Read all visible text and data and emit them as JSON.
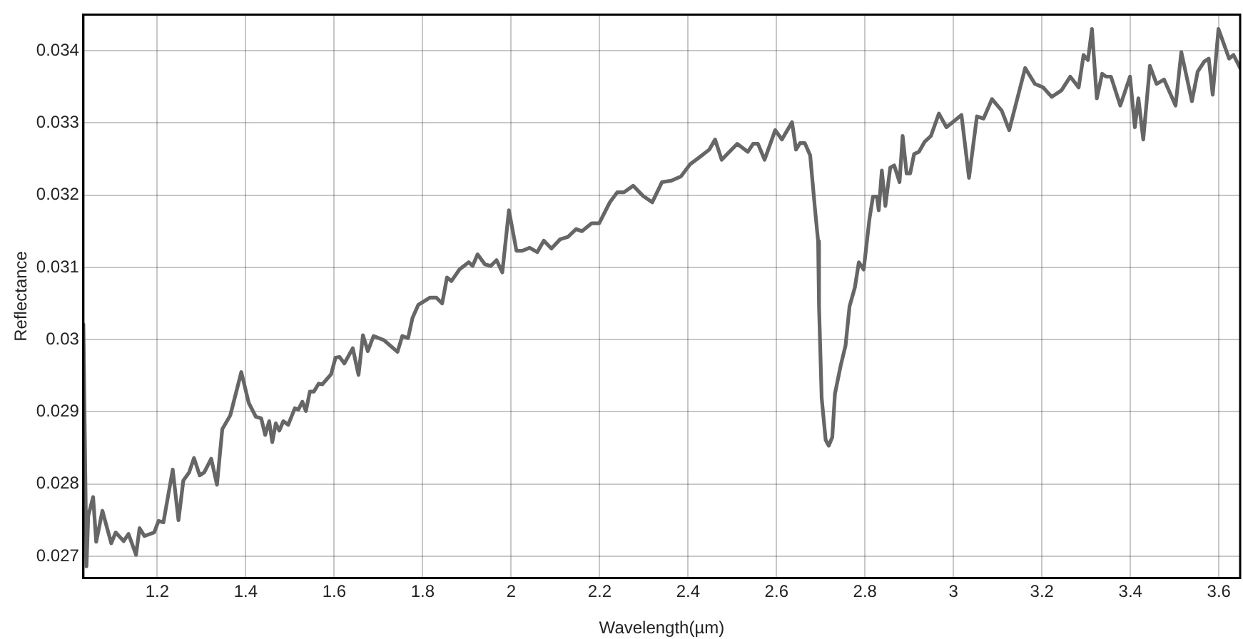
{
  "chart_data": {
    "type": "line",
    "xlabel": "Wavelength(µm)",
    "ylabel": "Reflectance",
    "xlim": [
      1.033,
      3.648
    ],
    "xticks": [
      1.2,
      1.4,
      1.6,
      1.8,
      2,
      2.2,
      2.4,
      2.6,
      2.8,
      3,
      3.2,
      3.4,
      3.6
    ],
    "ylim": [
      0.0267,
      0.0345
    ],
    "yticks": [
      0.027,
      0.028,
      0.029,
      0.03,
      0.031,
      0.032,
      0.033,
      0.034
    ],
    "grid": true,
    "legend": false,
    "marker": "none",
    "line_style": "solid",
    "series": [
      {
        "color": "#666666",
        "x": [
          1.033,
          1.04,
          1.044,
          1.055,
          1.062,
          1.076,
          1.096,
          1.106,
          1.124,
          1.135,
          1.152,
          1.16,
          1.171,
          1.193,
          1.203,
          1.214,
          1.235,
          1.248,
          1.259,
          1.272,
          1.283,
          1.296,
          1.306,
          1.322,
          1.335,
          1.347,
          1.365,
          1.39,
          1.407,
          1.423,
          1.435,
          1.444,
          1.453,
          1.46,
          1.468,
          1.476,
          1.485,
          1.496,
          1.511,
          1.519,
          1.528,
          1.536,
          1.545,
          1.554,
          1.565,
          1.573,
          1.593,
          1.603,
          1.612,
          1.623,
          1.642,
          1.655,
          1.665,
          1.676,
          1.689,
          1.713,
          1.726,
          1.743,
          1.754,
          1.767,
          1.777,
          1.79,
          1.816,
          1.831,
          1.844,
          1.855,
          1.865,
          1.883,
          1.904,
          1.913,
          1.924,
          1.941,
          1.954,
          1.967,
          1.98,
          1.995,
          2.012,
          2.025,
          2.042,
          2.059,
          2.074,
          2.091,
          2.111,
          2.128,
          2.147,
          2.16,
          2.182,
          2.199,
          2.223,
          2.24,
          2.255,
          2.276,
          2.298,
          2.319,
          2.341,
          2.362,
          2.384,
          2.405,
          2.427,
          2.448,
          2.461,
          2.476,
          2.511,
          2.535,
          2.547,
          2.558,
          2.573,
          2.597,
          2.612,
          2.635,
          2.644,
          2.653,
          2.664,
          2.676,
          2.687,
          2.694,
          2.696,
          2.702,
          2.711,
          2.718,
          2.726,
          2.732,
          2.745,
          2.756,
          2.765,
          2.777,
          2.786,
          2.797,
          2.81,
          2.818,
          2.827,
          2.831,
          2.838,
          2.846,
          2.857,
          2.866,
          2.878,
          2.885,
          2.894,
          2.902,
          2.911,
          2.922,
          2.935,
          2.949,
          2.967,
          2.984,
          3.018,
          3.035,
          3.053,
          3.068,
          3.087,
          3.109,
          3.126,
          3.162,
          3.184,
          3.203,
          3.222,
          3.244,
          3.264,
          3.283,
          3.294,
          3.304,
          3.313,
          3.324,
          3.336,
          3.345,
          3.356,
          3.377,
          3.399,
          3.41,
          3.418,
          3.429,
          3.444,
          3.459,
          3.476,
          3.502,
          3.515,
          3.539,
          3.552,
          3.567,
          3.577,
          3.586,
          3.599,
          3.623,
          3.633,
          3.648
        ],
        "values": [
          0.03021,
          0.02686,
          0.02756,
          0.02782,
          0.0272,
          0.02763,
          0.02718,
          0.02733,
          0.02721,
          0.02731,
          0.02702,
          0.02739,
          0.02728,
          0.02733,
          0.02749,
          0.02747,
          0.0282,
          0.0275,
          0.02805,
          0.02816,
          0.02836,
          0.02812,
          0.02816,
          0.02835,
          0.02799,
          0.02876,
          0.02895,
          0.02955,
          0.02912,
          0.02893,
          0.02891,
          0.02868,
          0.02887,
          0.02858,
          0.02884,
          0.02874,
          0.02887,
          0.02882,
          0.02905,
          0.02903,
          0.02914,
          0.02901,
          0.02928,
          0.02928,
          0.02939,
          0.02938,
          0.02952,
          0.02975,
          0.02976,
          0.02967,
          0.02988,
          0.02951,
          0.03006,
          0.02984,
          0.03005,
          0.02999,
          0.02992,
          0.02983,
          0.03005,
          0.03002,
          0.0303,
          0.03048,
          0.03058,
          0.03058,
          0.0305,
          0.03086,
          0.03081,
          0.03097,
          0.03107,
          0.03102,
          0.03118,
          0.03104,
          0.03102,
          0.0311,
          0.03093,
          0.03179,
          0.03123,
          0.03123,
          0.03127,
          0.03121,
          0.03137,
          0.03126,
          0.03139,
          0.03142,
          0.03153,
          0.0315,
          0.03161,
          0.03161,
          0.0319,
          0.03204,
          0.03204,
          0.03213,
          0.03199,
          0.0319,
          0.03218,
          0.0322,
          0.03226,
          0.03243,
          0.03253,
          0.03263,
          0.03277,
          0.03249,
          0.03271,
          0.0326,
          0.03271,
          0.03271,
          0.03249,
          0.0329,
          0.03277,
          0.03301,
          0.03263,
          0.03272,
          0.03272,
          0.03255,
          0.0318,
          0.03136,
          0.03046,
          0.02919,
          0.02861,
          0.02853,
          0.02865,
          0.02925,
          0.02964,
          0.02992,
          0.03046,
          0.03072,
          0.03107,
          0.03097,
          0.03167,
          0.03198,
          0.03198,
          0.03179,
          0.03234,
          0.03185,
          0.03238,
          0.03241,
          0.03218,
          0.03282,
          0.0323,
          0.0323,
          0.03257,
          0.0326,
          0.03274,
          0.03282,
          0.03313,
          0.03294,
          0.03311,
          0.03224,
          0.03309,
          0.03306,
          0.03333,
          0.03317,
          0.0329,
          0.03376,
          0.03354,
          0.03349,
          0.03336,
          0.03345,
          0.03364,
          0.03349,
          0.03394,
          0.03387,
          0.0343,
          0.03334,
          0.03368,
          0.03364,
          0.03364,
          0.03324,
          0.03364,
          0.03294,
          0.03334,
          0.03277,
          0.03379,
          0.03354,
          0.0336,
          0.03324,
          0.03398,
          0.0333,
          0.03371,
          0.03385,
          0.03389,
          0.03339,
          0.0343,
          0.03389,
          0.03394,
          0.03376
        ]
      }
    ]
  }
}
